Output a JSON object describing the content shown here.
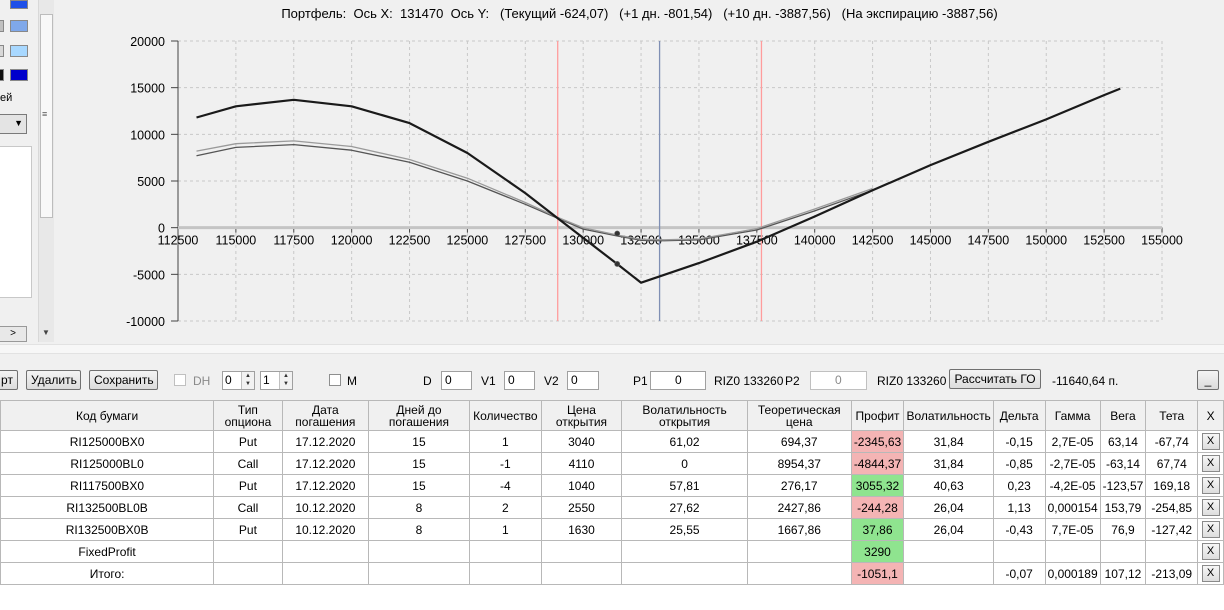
{
  "chart": {
    "title": "Портфель:  Ось X:  131470  Ось Y:   (Текущий -624,07)   (+1 дн. -801,54)   (+10 дн. -3887,56)   (На экспирацию -3887,56)"
  },
  "chart_data": {
    "type": "line",
    "title": "Портфель:  Ось X:  131470  Ось Y:   (Текущий -624,07)   (+1 дн. -801,54)   (+10 дн. -3887,56)   (На экспирацию -3887,56)",
    "xlim": [
      112500,
      155000
    ],
    "ylim": [
      -10000,
      20000
    ],
    "x_ticks": [
      "112500",
      "115000",
      "117500",
      "120000",
      "122500",
      "125000",
      "127500",
      "130000",
      "132500",
      "135000",
      "137500",
      "140000",
      "142500",
      "145000",
      "147500",
      "150000",
      "152500",
      "155000"
    ],
    "y_ticks": [
      "20000",
      "15000",
      "10000",
      "5000",
      "0",
      "-5000",
      "-10000"
    ],
    "grid": true,
    "vertical_lines": [
      {
        "x": 128900,
        "color": "#ff9c9c"
      },
      {
        "x": 133300,
        "color": "#7f8fb4"
      },
      {
        "x": 137700,
        "color": "#ff9c9c"
      }
    ],
    "markers": [
      {
        "x": 131470,
        "y": -624
      },
      {
        "x": 131470,
        "y": -3888
      }
    ],
    "series": [
      {
        "color": "#1a1a1a",
        "width": 2.2,
        "x": [
          113300,
          115000,
          117500,
          120000,
          122500,
          125000,
          127500,
          128900,
          130000,
          131470,
          132500,
          135000,
          137500,
          140000,
          142500,
          145000,
          147500,
          150000,
          152500,
          153200
        ],
        "y": [
          11800,
          13000,
          13700,
          13000,
          11200,
          8000,
          3700,
          1000,
          -1100,
          -3888,
          -5900,
          -3800,
          -1500,
          1200,
          4000,
          6700,
          9200,
          11600,
          14200,
          14900
        ]
      },
      {
        "color": "#9a9a9a",
        "width": 1.3,
        "x": [
          113300,
          115000,
          117500,
          120000,
          122500,
          125000,
          127500,
          128900,
          130000,
          131500,
          132500,
          133500,
          135000,
          137500,
          140000,
          142500
        ],
        "y": [
          8200,
          9000,
          9300,
          8700,
          7300,
          5300,
          2700,
          1100,
          0,
          -800,
          -1250,
          -1300,
          -1200,
          -100,
          2000,
          4200
        ]
      },
      {
        "color": "#555555",
        "width": 1.3,
        "x": [
          113300,
          115000,
          117500,
          120000,
          122500,
          125000,
          127500,
          128900,
          130000,
          131500,
          132500,
          133500,
          135000,
          137500,
          140000,
          142500
        ],
        "y": [
          7700,
          8600,
          8900,
          8300,
          7000,
          5000,
          2500,
          1000,
          -150,
          -900,
          -1350,
          -1400,
          -1300,
          -250,
          1800,
          4000
        ]
      }
    ]
  },
  "left_panel": {
    "label": "ей",
    "list_arrow": ">",
    "colors": {
      "dark_blue_1": "#0000cc",
      "blue": "#1e50e8",
      "light_blue": "#a8d8ff",
      "blue2": "#7fa8ea"
    }
  },
  "toolbar": {
    "export_btn": "рт",
    "delete_btn": "Удалить",
    "save_btn": "Сохранить",
    "dh_label": "DH",
    "spin1": "0",
    "spin2": "1",
    "m_label": "M",
    "d_label": "D",
    "d_value": "0",
    "v1_label": "V1",
    "v1_value": "0",
    "v2_label": "V2",
    "v2_value": "0",
    "p1_label": "P1",
    "p1_value": "0",
    "riz1_label": "RIZ0 133260",
    "p2_label": "P2",
    "p2_value": "0",
    "riz2_label": "RIZ0 133260",
    "calc_btn": "Рассчитать ГО",
    "go_value": "-11640,64 п.",
    "minimize_btn": "_"
  },
  "table": {
    "headers": [
      "Код бумаги",
      "Тип опциона",
      "Дата погашения",
      "Дней до погашения",
      "Количество",
      "Цена открытия",
      "Волатильность открытия",
      "Теоретическая цена",
      "Профит",
      "Волатильность",
      "Дельта",
      "Гамма",
      "Вега",
      "Тета",
      "X"
    ],
    "rows": [
      {
        "code": "RI125000BX0",
        "type": "Put",
        "date": "17.12.2020",
        "days": "15",
        "qty": "1",
        "open_price": "3040",
        "open_vol": "61,02",
        "theor": "694,37",
        "profit": "-2345,63",
        "profit_sign": "neg",
        "vol": "31,84",
        "delta": "-0,15",
        "gamma": "2,7E-05",
        "vega": "63,14",
        "theta": "-67,74",
        "x": "X"
      },
      {
        "code": "RI125000BL0",
        "type": "Call",
        "date": "17.12.2020",
        "days": "15",
        "qty": "-1",
        "open_price": "4110",
        "open_vol": "0",
        "theor": "8954,37",
        "profit": "-4844,37",
        "profit_sign": "neg",
        "vol": "31,84",
        "delta": "-0,85",
        "gamma": "-2,7E-05",
        "vega": "-63,14",
        "theta": "67,74",
        "x": "X"
      },
      {
        "code": "RI117500BX0",
        "type": "Put",
        "date": "17.12.2020",
        "days": "15",
        "qty": "-4",
        "open_price": "1040",
        "open_vol": "57,81",
        "theor": "276,17",
        "profit": "3055,32",
        "profit_sign": "pos",
        "vol": "40,63",
        "delta": "0,23",
        "gamma": "-4,2E-05",
        "vega": "-123,57",
        "theta": "169,18",
        "x": "X"
      },
      {
        "code": "RI132500BL0B",
        "type": "Call",
        "date": "10.12.2020",
        "days": "8",
        "qty": "2",
        "open_price": "2550",
        "open_vol": "27,62",
        "theor": "2427,86",
        "profit": "-244,28",
        "profit_sign": "neg",
        "vol": "26,04",
        "delta": "1,13",
        "gamma": "0,000154",
        "vega": "153,79",
        "theta": "-254,85",
        "x": "X"
      },
      {
        "code": "RI132500BX0B",
        "type": "Put",
        "date": "10.12.2020",
        "days": "8",
        "qty": "1",
        "open_price": "1630",
        "open_vol": "25,55",
        "theor": "1667,86",
        "profit": "37,86",
        "profit_sign": "pos",
        "vol": "26,04",
        "delta": "-0,43",
        "gamma": "7,7E-05",
        "vega": "76,9",
        "theta": "-127,42",
        "x": "X"
      },
      {
        "code": "FixedProfit",
        "type": "",
        "date": "",
        "days": "",
        "qty": "",
        "open_price": "",
        "open_vol": "",
        "theor": "",
        "profit": "3290",
        "profit_sign": "pos",
        "vol": "",
        "delta": "",
        "gamma": "",
        "vega": "",
        "theta": "",
        "x": "X"
      },
      {
        "code": "Итого:",
        "type": "",
        "date": "",
        "days": "",
        "qty": "",
        "open_price": "",
        "open_vol": "",
        "theor": "",
        "profit": "-1051,1",
        "profit_sign": "neg",
        "vol": "",
        "delta": "-0,07",
        "gamma": "0,000189",
        "vega": "107,12",
        "theta": "-213,09",
        "x": "X"
      }
    ]
  }
}
